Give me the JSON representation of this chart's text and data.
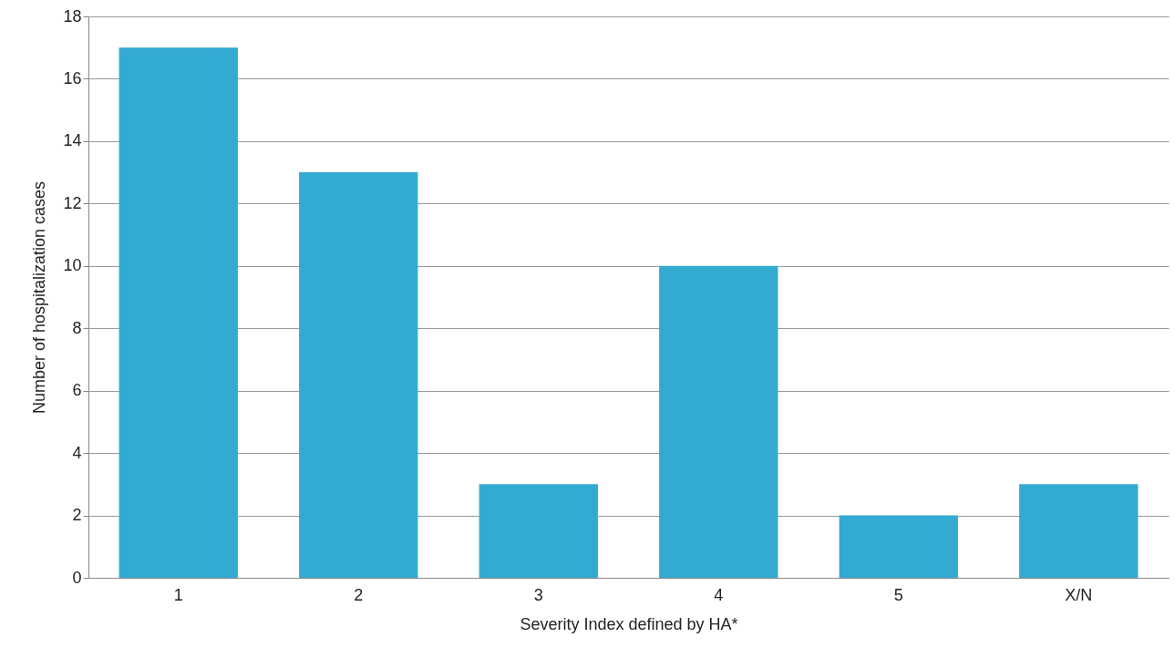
{
  "chart_data": {
    "type": "bar",
    "xlabel": "Severity Index defined by HA*",
    "ylabel": "Number of hospitalization cases",
    "categories": [
      "1",
      "2",
      "3",
      "4",
      "5",
      "X/N"
    ],
    "values": [
      17,
      13,
      3,
      10,
      2,
      3
    ],
    "color": "#33aad2",
    "ylim": [
      0,
      18
    ],
    "yticks": [
      0,
      2,
      4,
      6,
      8,
      10,
      12,
      14,
      16,
      18
    ],
    "grid": "y"
  }
}
